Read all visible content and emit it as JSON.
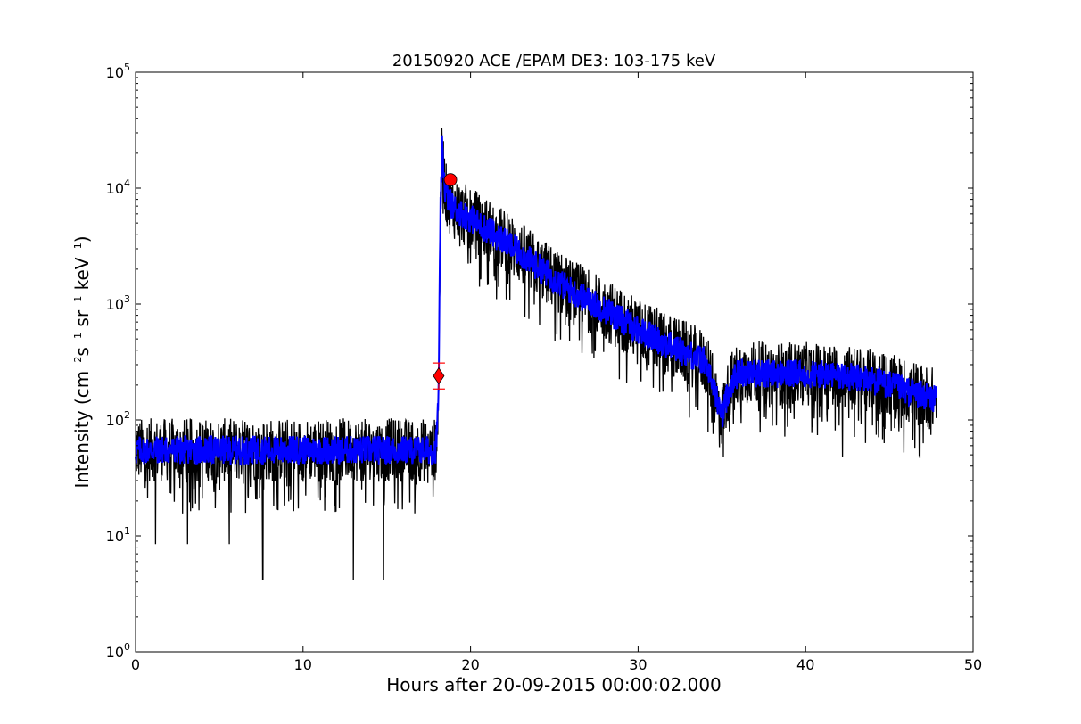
{
  "chart_data": {
    "type": "line",
    "title": "20150920 ACE /EPAM DE3: 103-175 keV",
    "xlabel": "Hours after 20-09-2015 00:00:02.000",
    "ylabel": {
      "base": "Intensity (cm",
      "e1": "−2",
      "p2": "s",
      "e2": "−1",
      "p3": " sr",
      "e3": "−1",
      "p4": " keV",
      "e4": "−1",
      "p5": ")"
    },
    "xlim": [
      0,
      50
    ],
    "ylim": [
      1,
      100000
    ],
    "yscale": "log",
    "grid": false,
    "x_ticks": [
      "0",
      "10",
      "20",
      "30",
      "40",
      "50"
    ],
    "x_tick_values": [
      0,
      10,
      20,
      30,
      40,
      50
    ],
    "y_ticks": [
      {
        "base": "10",
        "exp": "0",
        "value": 1
      },
      {
        "base": "10",
        "exp": "1",
        "value": 10
      },
      {
        "base": "10",
        "exp": "2",
        "value": 100
      },
      {
        "base": "10",
        "exp": "3",
        "value": 1000
      },
      {
        "base": "10",
        "exp": "4",
        "value": 10000
      },
      {
        "base": "10",
        "exp": "5",
        "value": 100000
      }
    ],
    "series": [
      {
        "role": "raw intensity",
        "color": "#000000",
        "envelope_x": [
          0,
          2,
          4,
          6,
          8,
          10,
          12,
          14,
          16,
          17.9,
          18.0,
          18.1,
          18.2,
          18.3,
          18.5,
          18.9,
          19.5,
          20,
          22,
          24,
          26,
          28,
          30,
          32,
          34,
          35.0,
          35.5,
          36,
          38,
          40,
          42,
          44,
          46,
          47.8
        ],
        "envelope_y": [
          55,
          55,
          55,
          55,
          55,
          55,
          55,
          55,
          55,
          55,
          80,
          200,
          6000,
          22000,
          9000,
          7000,
          6000,
          5500,
          3500,
          2100,
          1300,
          900,
          600,
          430,
          320,
          110,
          200,
          260,
          250,
          250,
          240,
          220,
          180,
          150
        ],
        "dips": [
          [
            1.2,
            8.5
          ],
          [
            3.1,
            8.5
          ],
          [
            5.6,
            8.5
          ],
          [
            7.6,
            4.2
          ],
          [
            13.0,
            4.2
          ],
          [
            14.8,
            4.2
          ],
          [
            35.1,
            48
          ],
          [
            42.2,
            48
          ]
        ]
      },
      {
        "role": "smoothed intensity",
        "color": "#0000ff",
        "envelope_x": [
          0,
          2,
          4,
          6,
          8,
          10,
          12,
          14,
          16,
          17.9,
          18.0,
          18.1,
          18.2,
          18.3,
          18.5,
          18.9,
          19.5,
          20,
          22,
          24,
          26,
          28,
          30,
          32,
          34,
          35.0,
          35.5,
          36,
          38,
          40,
          42,
          44,
          46,
          47.8
        ],
        "envelope_y": [
          55,
          55,
          55,
          55,
          55,
          55,
          55,
          55,
          55,
          55,
          80,
          200,
          6000,
          22000,
          9000,
          7000,
          6000,
          5500,
          3500,
          2100,
          1300,
          900,
          600,
          430,
          320,
          110,
          200,
          260,
          250,
          250,
          240,
          220,
          180,
          150
        ]
      }
    ],
    "markers": [
      {
        "shape": "diamond",
        "color": "#ff0000",
        "x": 18.1,
        "y": 240,
        "error_low": 185,
        "error_high": 310
      },
      {
        "shape": "circle",
        "color": "#ff0000",
        "x": 18.8,
        "y": 11800
      }
    ]
  }
}
